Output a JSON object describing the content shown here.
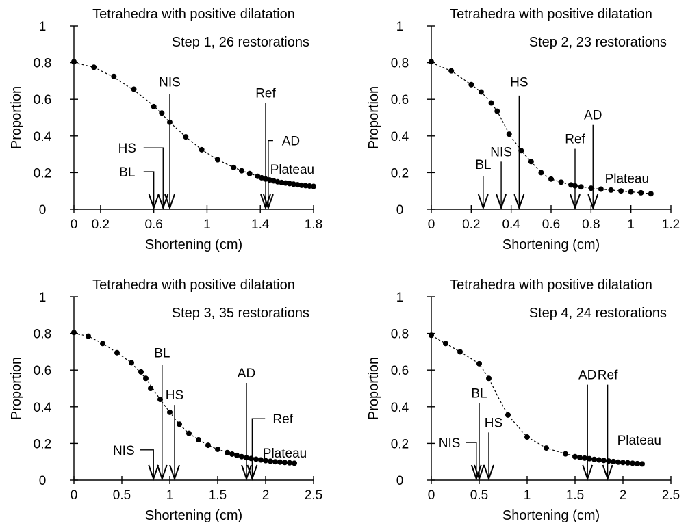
{
  "chart_data": [
    {
      "type": "scatter",
      "title": "Tetrahedra with positive dilatation",
      "label": "Step 1, 26 restorations",
      "xlabel": "Shortening (cm)",
      "ylabel": "Proportion",
      "xlim": [
        0,
        1.8
      ],
      "ylim": [
        0,
        1
      ],
      "xticks": [
        0,
        0.2,
        0.6,
        1,
        1.4,
        1.8
      ],
      "yticks": [
        0,
        0.2,
        0.4,
        0.6,
        0.8,
        1
      ],
      "points": [
        [
          0,
          0.805
        ],
        [
          0.15,
          0.775
        ],
        [
          0.3,
          0.725
        ],
        [
          0.45,
          0.655
        ],
        [
          0.6,
          0.56
        ],
        [
          0.66,
          0.525
        ],
        [
          0.72,
          0.475
        ],
        [
          0.84,
          0.395
        ],
        [
          0.96,
          0.325
        ],
        [
          1.08,
          0.27
        ],
        [
          1.2,
          0.228
        ],
        [
          1.26,
          0.21
        ],
        [
          1.32,
          0.195
        ],
        [
          1.38,
          0.18
        ],
        [
          1.41,
          0.172
        ],
        [
          1.44,
          0.165
        ],
        [
          1.47,
          0.16
        ],
        [
          1.5,
          0.155
        ],
        [
          1.53,
          0.15
        ],
        [
          1.56,
          0.146
        ],
        [
          1.59,
          0.143
        ],
        [
          1.62,
          0.14
        ],
        [
          1.65,
          0.137
        ],
        [
          1.68,
          0.134
        ],
        [
          1.71,
          0.131
        ],
        [
          1.74,
          0.129
        ],
        [
          1.77,
          0.127
        ],
        [
          1.8,
          0.125
        ]
      ],
      "curve": [
        [
          0,
          0.8
        ],
        [
          0.15,
          0.775
        ],
        [
          0.3,
          0.72
        ],
        [
          0.45,
          0.65
        ],
        [
          0.6,
          0.565
        ],
        [
          0.72,
          0.475
        ],
        [
          0.84,
          0.395
        ],
        [
          0.96,
          0.325
        ],
        [
          1.08,
          0.27
        ],
        [
          1.2,
          0.228
        ],
        [
          1.32,
          0.195
        ],
        [
          1.44,
          0.168
        ],
        [
          1.56,
          0.148
        ],
        [
          1.68,
          0.135
        ],
        [
          1.8,
          0.125
        ]
      ],
      "markers": [
        {
          "label": "BL",
          "x": 0.6,
          "text_x": 0.4,
          "text_y": 0.2,
          "elbow_y": 0.205,
          "top_y": 0.205
        },
        {
          "label": "HS",
          "x": 0.67,
          "text_x": 0.4,
          "text_y": 0.33,
          "elbow_y": 0.335,
          "top_y": 0.335
        },
        {
          "label": "NIS",
          "x": 0.72,
          "text_x": 0.72,
          "text_y": 0.67,
          "top_y": 0.63
        },
        {
          "label": "Ref",
          "x": 1.44,
          "text_x": 1.44,
          "text_y": 0.61,
          "top_y": 0.58
        },
        {
          "label": "AD",
          "x": 1.46,
          "text_x": 1.63,
          "text_y": 0.37,
          "elbow_y": 0.375,
          "top_y": 0.375
        },
        {
          "label": "Plateau",
          "text_x": 1.64,
          "text_y": 0.22,
          "text_only": true
        }
      ]
    },
    {
      "type": "scatter",
      "title": "Tetrahedra with positive dilatation",
      "label": "Step 2, 23 restorations",
      "xlabel": "Shortening (cm)",
      "ylabel": "Proportion",
      "xlim": [
        0,
        1.2
      ],
      "ylim": [
        0,
        1
      ],
      "xticks": [
        0,
        0.2,
        0.4,
        0.6,
        0.8,
        1,
        1.2
      ],
      "yticks": [
        0,
        0.2,
        0.4,
        0.6,
        0.8,
        1
      ],
      "points": [
        [
          0,
          0.805
        ],
        [
          0.1,
          0.755
        ],
        [
          0.2,
          0.68
        ],
        [
          0.25,
          0.64
        ],
        [
          0.3,
          0.58
        ],
        [
          0.33,
          0.535
        ],
        [
          0.39,
          0.41
        ],
        [
          0.45,
          0.32
        ],
        [
          0.5,
          0.26
        ],
        [
          0.55,
          0.2
        ],
        [
          0.6,
          0.165
        ],
        [
          0.65,
          0.148
        ],
        [
          0.7,
          0.133
        ],
        [
          0.72,
          0.128
        ],
        [
          0.75,
          0.122
        ],
        [
          0.8,
          0.115
        ],
        [
          0.85,
          0.11
        ],
        [
          0.9,
          0.105
        ],
        [
          0.95,
          0.1
        ],
        [
          1.0,
          0.095
        ],
        [
          1.05,
          0.09
        ],
        [
          1.1,
          0.085
        ]
      ],
      "curve": [
        [
          0,
          0.8
        ],
        [
          0.1,
          0.755
        ],
        [
          0.2,
          0.68
        ],
        [
          0.25,
          0.64
        ],
        [
          0.3,
          0.58
        ],
        [
          0.33,
          0.535
        ],
        [
          0.39,
          0.41
        ],
        [
          0.45,
          0.32
        ],
        [
          0.5,
          0.26
        ],
        [
          0.55,
          0.2
        ],
        [
          0.6,
          0.165
        ],
        [
          0.7,
          0.133
        ],
        [
          0.8,
          0.115
        ],
        [
          0.9,
          0.105
        ],
        [
          1.0,
          0.095
        ],
        [
          1.1,
          0.085
        ]
      ],
      "markers": [
        {
          "label": "BL",
          "x": 0.26,
          "text_x": 0.26,
          "text_y": 0.22,
          "top_y": 0.18
        },
        {
          "label": "NIS",
          "x": 0.35,
          "text_x": 0.35,
          "text_y": 0.29,
          "top_y": 0.26
        },
        {
          "label": "HS",
          "x": 0.44,
          "text_x": 0.44,
          "text_y": 0.67,
          "top_y": 0.62
        },
        {
          "label": "Ref",
          "x": 0.72,
          "text_x": 0.72,
          "text_y": 0.36,
          "top_y": 0.33
        },
        {
          "label": "AD",
          "x": 0.81,
          "text_x": 0.81,
          "text_y": 0.49,
          "top_y": 0.46
        },
        {
          "label": "Plateau",
          "text_x": 0.98,
          "text_y": 0.17,
          "text_only": true
        }
      ]
    },
    {
      "type": "scatter",
      "title": "Tetrahedra with positive dilatation",
      "label": "Step 3, 35 restorations",
      "xlabel": "Shortening (cm)",
      "ylabel": "Proportion",
      "xlim": [
        0,
        2.5
      ],
      "ylim": [
        0,
        1
      ],
      "xticks": [
        0,
        0.5,
        1,
        1.5,
        2,
        2.5
      ],
      "yticks": [
        0,
        0.2,
        0.4,
        0.6,
        0.8,
        1
      ],
      "points": [
        [
          0,
          0.805
        ],
        [
          0.15,
          0.785
        ],
        [
          0.3,
          0.745
        ],
        [
          0.45,
          0.695
        ],
        [
          0.6,
          0.64
        ],
        [
          0.7,
          0.59
        ],
        [
          0.75,
          0.555
        ],
        [
          0.8,
          0.5
        ],
        [
          0.9,
          0.44
        ],
        [
          1.0,
          0.37
        ],
        [
          1.1,
          0.305
        ],
        [
          1.2,
          0.255
        ],
        [
          1.3,
          0.22
        ],
        [
          1.4,
          0.19
        ],
        [
          1.5,
          0.168
        ],
        [
          1.6,
          0.15
        ],
        [
          1.65,
          0.142
        ],
        [
          1.7,
          0.135
        ],
        [
          1.75,
          0.128
        ],
        [
          1.8,
          0.122
        ],
        [
          1.85,
          0.118
        ],
        [
          1.9,
          0.114
        ],
        [
          1.95,
          0.11
        ],
        [
          2.0,
          0.106
        ],
        [
          2.05,
          0.103
        ],
        [
          2.1,
          0.1
        ],
        [
          2.15,
          0.098
        ],
        [
          2.2,
          0.096
        ],
        [
          2.25,
          0.094
        ],
        [
          2.3,
          0.092
        ]
      ],
      "curve": [
        [
          0,
          0.8
        ],
        [
          0.15,
          0.785
        ],
        [
          0.3,
          0.745
        ],
        [
          0.45,
          0.695
        ],
        [
          0.6,
          0.64
        ],
        [
          0.75,
          0.555
        ],
        [
          0.9,
          0.44
        ],
        [
          1.0,
          0.37
        ],
        [
          1.1,
          0.305
        ],
        [
          1.2,
          0.255
        ],
        [
          1.3,
          0.22
        ],
        [
          1.4,
          0.19
        ],
        [
          1.5,
          0.168
        ],
        [
          1.7,
          0.135
        ],
        [
          1.9,
          0.114
        ],
        [
          2.1,
          0.1
        ],
        [
          2.3,
          0.092
        ]
      ],
      "markers": [
        {
          "label": "NIS",
          "x": 0.83,
          "text_x": 0.52,
          "text_y": 0.16,
          "elbow_y": 0.165,
          "top_y": 0.165
        },
        {
          "label": "BL",
          "x": 0.92,
          "text_x": 0.92,
          "text_y": 0.67,
          "top_y": 0.63
        },
        {
          "label": "HS",
          "x": 1.05,
          "text_x": 1.05,
          "text_y": 0.44,
          "top_y": 0.41
        },
        {
          "label": "AD",
          "x": 1.8,
          "text_x": 1.8,
          "text_y": 0.56,
          "top_y": 0.53
        },
        {
          "label": "Ref",
          "x": 1.86,
          "text_x": 2.18,
          "text_y": 0.33,
          "elbow_y": 0.335,
          "top_y": 0.335
        },
        {
          "label": "Plateau",
          "text_x": 2.2,
          "text_y": 0.15,
          "text_only": true
        }
      ]
    },
    {
      "type": "scatter",
      "title": "Tetrahedra with positive dilatation",
      "label": "Step 4, 24 restorations",
      "xlabel": "Shortening (cm)",
      "ylabel": "Proportion",
      "xlim": [
        0,
        2.5
      ],
      "ylim": [
        0,
        1
      ],
      "xticks": [
        0,
        0.5,
        1,
        1.5,
        2,
        2.5
      ],
      "yticks": [
        0,
        0.2,
        0.4,
        0.6,
        0.8,
        1
      ],
      "points": [
        [
          0,
          0.79
        ],
        [
          0.15,
          0.745
        ],
        [
          0.3,
          0.7
        ],
        [
          0.5,
          0.635
        ],
        [
          0.6,
          0.555
        ],
        [
          0.8,
          0.355
        ],
        [
          1.0,
          0.235
        ],
        [
          1.2,
          0.175
        ],
        [
          1.4,
          0.143
        ],
        [
          1.5,
          0.128
        ],
        [
          1.55,
          0.123
        ],
        [
          1.6,
          0.12
        ],
        [
          1.65,
          0.117
        ],
        [
          1.7,
          0.113
        ],
        [
          1.75,
          0.11
        ],
        [
          1.8,
          0.107
        ],
        [
          1.85,
          0.104
        ],
        [
          1.9,
          0.101
        ],
        [
          1.95,
          0.098
        ],
        [
          2.0,
          0.096
        ],
        [
          2.05,
          0.094
        ],
        [
          2.1,
          0.092
        ],
        [
          2.15,
          0.09
        ],
        [
          2.2,
          0.088
        ]
      ],
      "curve": [
        [
          0,
          0.79
        ],
        [
          0.15,
          0.745
        ],
        [
          0.3,
          0.7
        ],
        [
          0.5,
          0.635
        ],
        [
          0.6,
          0.555
        ],
        [
          0.7,
          0.45
        ],
        [
          0.8,
          0.355
        ],
        [
          1.0,
          0.235
        ],
        [
          1.2,
          0.175
        ],
        [
          1.4,
          0.143
        ],
        [
          1.6,
          0.12
        ],
        [
          1.8,
          0.107
        ],
        [
          2.0,
          0.096
        ],
        [
          2.2,
          0.088
        ]
      ],
      "markers": [
        {
          "label": "NIS",
          "x": 0.47,
          "text_x": 0.19,
          "text_y": 0.2,
          "elbow_y": 0.205,
          "top_y": 0.205
        },
        {
          "label": "BL",
          "x": 0.5,
          "text_x": 0.5,
          "text_y": 0.45,
          "top_y": 0.42
        },
        {
          "label": "HS",
          "x": 0.6,
          "text_x": 0.65,
          "text_y": 0.29,
          "top_y": 0.26
        },
        {
          "label": "AD",
          "x": 1.63,
          "text_x": 1.63,
          "text_y": 0.55,
          "top_y": 0.52
        },
        {
          "label": "Ref",
          "x": 1.84,
          "text_x": 1.84,
          "text_y": 0.55,
          "top_y": 0.52
        },
        {
          "label": "Plateau",
          "text_x": 2.17,
          "text_y": 0.22,
          "text_only": true
        }
      ]
    }
  ]
}
